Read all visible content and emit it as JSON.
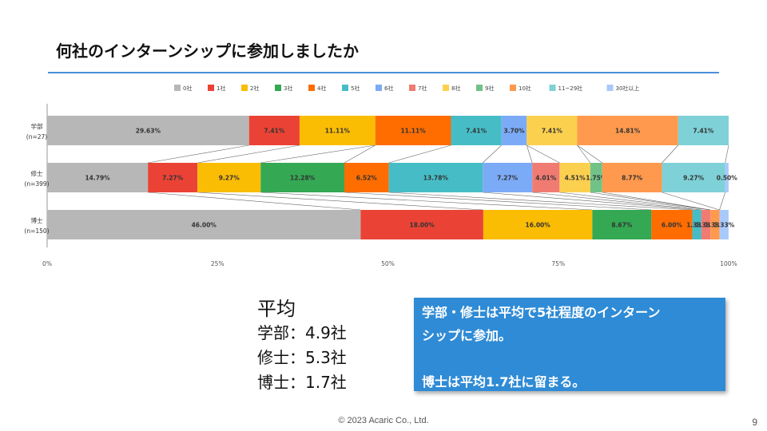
{
  "slide": {
    "title": "何社のインターンシップに参加しましたか",
    "footer": "© 2023 Acaric Co., Ltd.",
    "page_number": "9"
  },
  "average": {
    "heading": "平均",
    "lines": [
      "学部：4.9社",
      "修士：5.3社",
      "博士：1.7社"
    ]
  },
  "callout": {
    "line1": "学部・修士は平均で5社程度のインターン",
    "line2": "シップに参加。",
    "line3": "博士は平均1.7社に留まる。"
  },
  "chart_data": {
    "type": "bar",
    "orientation": "horizontal",
    "stacked": "percent",
    "legend_position": "top",
    "categories": [
      {
        "label": "学部",
        "n": "(n=27)"
      },
      {
        "label": "修士",
        "n": "(n=399)"
      },
      {
        "label": "博士",
        "n": "(n=150)"
      }
    ],
    "x_ticks": [
      "0%",
      "25%",
      "50%",
      "75%",
      "100%"
    ],
    "xlim": [
      0,
      100
    ],
    "series": [
      {
        "name": "0社",
        "color": "#b7b7b7",
        "values": [
          29.63,
          14.79,
          46.0
        ],
        "labels": [
          "29.63%",
          "14.79%",
          "46.00%"
        ]
      },
      {
        "name": "1社",
        "color": "#ea4335",
        "values": [
          7.41,
          7.27,
          18.0
        ],
        "labels": [
          "7.41%",
          "7.27%",
          "18.00%"
        ]
      },
      {
        "name": "2社",
        "color": "#fbbc04",
        "values": [
          11.11,
          9.27,
          16.0
        ],
        "labels": [
          "11.11%",
          "9.27%",
          "16.00%"
        ]
      },
      {
        "name": "3社",
        "color": "#34a853",
        "values": [
          0,
          12.28,
          8.67
        ],
        "labels": [
          "",
          "12.28%",
          "8.67%"
        ]
      },
      {
        "name": "4社",
        "color": "#ff6d01",
        "values": [
          11.11,
          6.52,
          6.0
        ],
        "labels": [
          "11.11%",
          "6.52%",
          "6.00%"
        ]
      },
      {
        "name": "5社",
        "color": "#46bdc6",
        "values": [
          7.41,
          13.78,
          1.33
        ],
        "labels": [
          "7.41%",
          "13.78%",
          "1.33%"
        ]
      },
      {
        "name": "6社",
        "color": "#7baaf7",
        "values": [
          3.7,
          7.27,
          0
        ],
        "labels": [
          "3.70%",
          "7.27%",
          ""
        ]
      },
      {
        "name": "7社",
        "color": "#f07b72",
        "values": [
          0,
          4.01,
          1.33
        ],
        "labels": [
          "",
          "4.01%",
          "1.33%"
        ]
      },
      {
        "name": "8社",
        "color": "#fcd04f",
        "values": [
          7.41,
          4.51,
          0
        ],
        "labels": [
          "7.41%",
          "4.51%",
          ""
        ]
      },
      {
        "name": "9社",
        "color": "#71c287",
        "values": [
          0,
          1.75,
          0
        ],
        "labels": [
          "",
          "1.75%",
          ""
        ]
      },
      {
        "name": "10社",
        "color": "#ff994d",
        "values": [
          14.81,
          8.77,
          1.33
        ],
        "labels": [
          "14.81%",
          "8.77%",
          "1.33%"
        ]
      },
      {
        "name": "11~29社",
        "color": "#7ed1d7",
        "values": [
          7.41,
          9.27,
          0
        ],
        "labels": [
          "7.41%",
          "9.27%",
          ""
        ]
      },
      {
        "name": "30社以上",
        "color": "#a9c9fb",
        "values": [
          0,
          0.5,
          1.33
        ],
        "labels": [
          "",
          "0.50%",
          "1.33%"
        ]
      }
    ]
  }
}
